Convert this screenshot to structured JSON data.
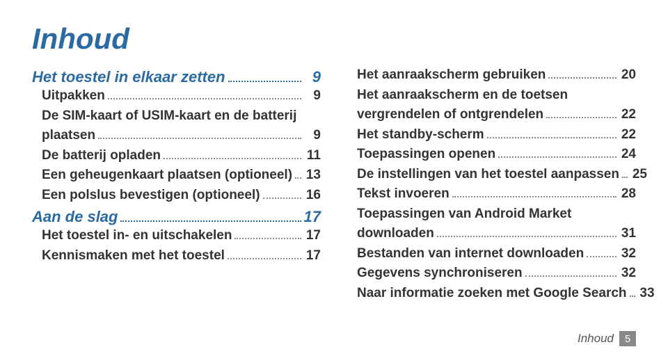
{
  "title": "Inhoud",
  "left": {
    "s1": {
      "label": "Het toestel in elkaar zetten",
      "page": "9"
    },
    "i1": {
      "label": "Uitpakken",
      "page": "9"
    },
    "i2": {
      "l1": "De SIM-kaart of USIM-kaart en de batterij",
      "l2": "plaatsen",
      "page": "9"
    },
    "i3": {
      "label": "De batterij opladen",
      "page": "11"
    },
    "i4": {
      "label": "Een geheugenkaart plaatsen (optioneel)",
      "page": "13"
    },
    "i5": {
      "label": "Een polslus bevestigen (optioneel)",
      "page": "16"
    },
    "s2": {
      "label": "Aan de slag",
      "page": "17"
    },
    "i6": {
      "label": "Het toestel in- en uitschakelen",
      "page": "17"
    },
    "i7": {
      "label": "Kennismaken met het toestel",
      "page": "17"
    }
  },
  "right": {
    "i1": {
      "label": "Het aanraakscherm gebruiken",
      "page": "20"
    },
    "i2": {
      "l1": "Het aanraakscherm en de toetsen",
      "l2": "vergrendelen of ontgrendelen",
      "page": "22"
    },
    "i3": {
      "label": "Het standby-scherm",
      "page": "22"
    },
    "i4": {
      "label": "Toepassingen openen",
      "page": "24"
    },
    "i5": {
      "label": "De instellingen van het toestel aanpassen",
      "page": "25"
    },
    "i6": {
      "label": "Tekst invoeren",
      "page": "28"
    },
    "i7": {
      "l1": "Toepassingen van Android Market",
      "l2": "downloaden",
      "page": "31"
    },
    "i8": {
      "label": "Bestanden van internet downloaden",
      "page": "32"
    },
    "i9": {
      "label": "Gegevens synchroniseren",
      "page": "32"
    },
    "i10": {
      "label": "Naar informatie zoeken met Google Search",
      "page": "33"
    }
  },
  "footer": {
    "label": "Inhoud",
    "page": "5"
  }
}
